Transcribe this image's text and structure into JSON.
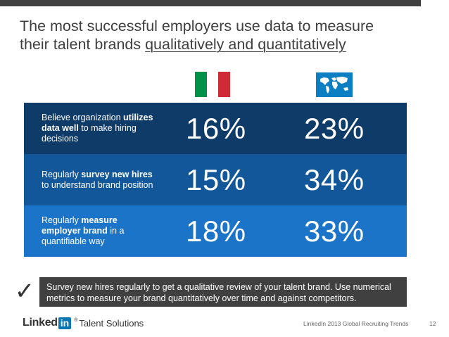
{
  "slide": {
    "title_line1": "The most successful employers use data to measure",
    "title_line2_prefix": "their talent brands ",
    "title_line2_underlined": "qualitatively and quantitatively"
  },
  "flags": {
    "left": {
      "name": "italy-flag-icon",
      "colors": [
        "#009246",
        "#ffffff",
        "#ce2b37"
      ]
    },
    "right": {
      "name": "world-map-icon",
      "color": "#0c7fc2"
    }
  },
  "rows": [
    {
      "label_pre": "Believe organization ",
      "label_bold": "utilizes data well",
      "label_post": " to make hiring decisions",
      "italy": "16%",
      "global": "23%",
      "color": "#0f3b68"
    },
    {
      "label_pre": "Regularly ",
      "label_bold": "survey new hires",
      "label_post": " to understand brand position",
      "italy": "15%",
      "global": "34%",
      "color": "#12579a"
    },
    {
      "label_pre": "Regularly ",
      "label_bold": "measure employer brand",
      "label_post": " in a quantifiable way",
      "italy": "18%",
      "global": "33%",
      "color": "#1c74c8"
    }
  ],
  "tip": {
    "check": "✓",
    "text": "Survey new hires regularly to get a qualitative review of your talent brand. Use numerical metrics to measure your brand quantitatively over time and against competitors."
  },
  "footer": {
    "logo_text": "Linked",
    "logo_box": "in",
    "logo_sub": "Talent Solutions",
    "source": "LinkedIn 2013 Global Recruiting Trends",
    "page": "12"
  }
}
